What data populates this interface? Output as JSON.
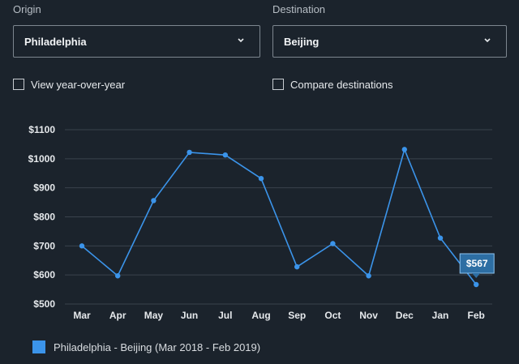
{
  "origin": {
    "label": "Origin",
    "value": "Philadelphia",
    "icon": "chevron-down-icon"
  },
  "destination": {
    "label": "Destination",
    "value": "Beijing",
    "icon": "chevron-down-icon"
  },
  "options": {
    "year_over_year": {
      "label": "View year-over-year",
      "checked": false
    },
    "compare": {
      "label": "Compare destinations",
      "checked": false
    }
  },
  "colors": {
    "series": "#3b94ea",
    "grid": "#3a434d",
    "tooltip_bg": "#2d6ea3",
    "background": "#1b232c"
  },
  "tooltip": {
    "text": "$567",
    "category": "Feb"
  },
  "chart_data": {
    "type": "line",
    "categories": [
      "Mar",
      "Apr",
      "May",
      "Jun",
      "Jul",
      "Aug",
      "Sep",
      "Oct",
      "Nov",
      "Dec",
      "Jan",
      "Feb"
    ],
    "series": [
      {
        "name": "Philadelphia - Beijing (Mar 2018 - Feb 2019)",
        "values": [
          700,
          597,
          856,
          1022,
          1013,
          932,
          628,
          708,
          597,
          1032,
          727,
          567
        ]
      }
    ],
    "yticks": [
      "$500",
      "$600",
      "$700",
      "$800",
      "$900",
      "$1000",
      "$1100"
    ],
    "ylim": [
      500,
      1100
    ],
    "grid": true,
    "legend_position": "bottom-left"
  }
}
